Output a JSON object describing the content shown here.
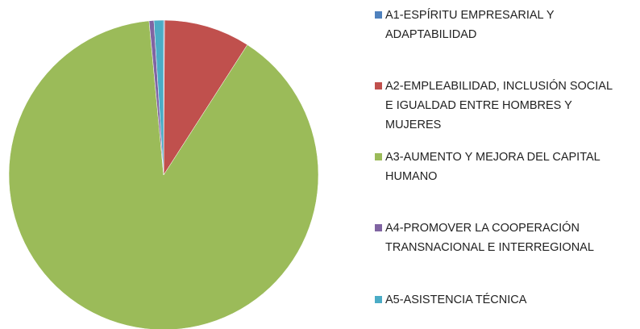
{
  "chart_data": {
    "type": "pie",
    "categories": [
      "A1-ESPÍRITU EMPRESARIAL Y ADAPTABILIDAD",
      "A2-EMPLEABILIDAD, INCLUSIÓN SOCIAL E IGUALDAD ENTRE HOMBRES Y MUJERES",
      "A3-AUMENTO Y MEJORA DEL CAPITAL HUMANO",
      "A4-PROMOVER LA COOPERACIÓN TRANSNACIONAL E INTERREGIONAL",
      "A5-ASISTENCIA TÉCNICA"
    ],
    "values": [
      0.1,
      9,
      89.4,
      0.5,
      1
    ],
    "colors": [
      "#4f81bd",
      "#c0504d",
      "#9bbb59",
      "#8064a2",
      "#4bacc6"
    ],
    "legend": "right"
  }
}
